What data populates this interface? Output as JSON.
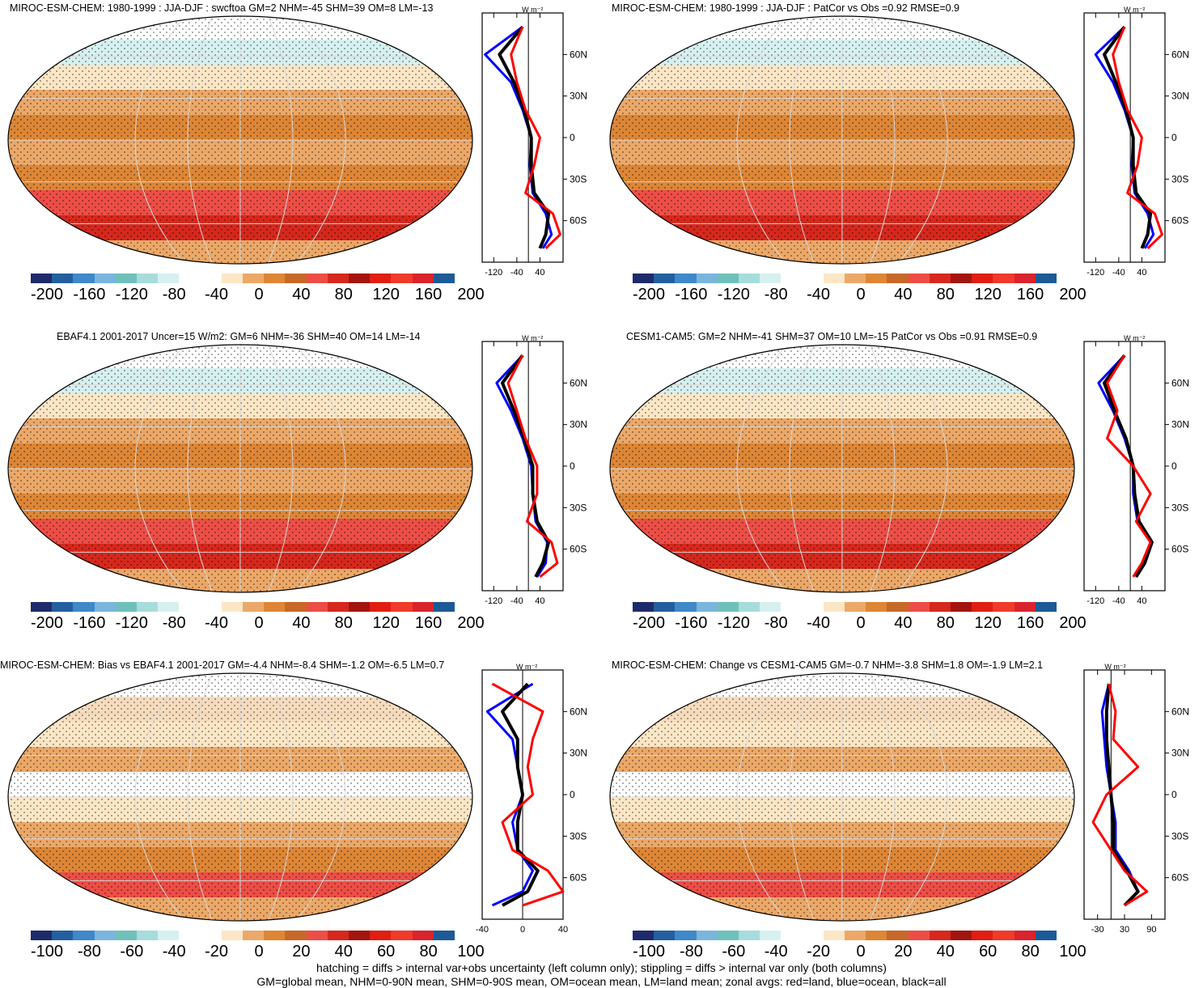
{
  "colors": {
    "palette": [
      "#1f2a6b",
      "#235f9e",
      "#3f88c9",
      "#7ab5de",
      "#6fc0bb",
      "#a7dcdc",
      "#d6f0f0",
      "#ffffff",
      "#ffffff",
      "#fbe6c5",
      "#eba868",
      "#dd8636",
      "#c86828",
      "#ec4e46",
      "#d6281d",
      "#a31510",
      "#e01e12",
      "#f03a2a",
      "#d9232d",
      "#1c5a96"
    ],
    "land": "#f0b27a",
    "zonal_land": "#ff0000",
    "zonal_ocean": "#0000ff",
    "zonal_all": "#000000"
  },
  "panels": [
    {
      "title": "MIROC-ESM-CHEM: 1980-1999 : JJA-DJF : swcftoa GM=2 NHM=-45 SHM=39 OM=8 LM=-13",
      "cbar_labels": [
        "-200",
        "-160",
        "-120",
        "-80",
        "-40",
        "0",
        "40",
        "80",
        "120",
        "160",
        "200"
      ],
      "zonal": {
        "unit": "W m⁻²",
        "x_labels": [
          "-120",
          "-40",
          "40"
        ],
        "y_labels": [
          "60N",
          "30N",
          "0",
          "30S",
          "60S"
        ]
      }
    },
    {
      "title": "MIROC-ESM-CHEM: 1980-1999 : JJA-DJF : PatCor vs Obs =0.92 RMSE=0.9",
      "cbar_labels": [
        "-200",
        "-160",
        "-120",
        "-80",
        "-40",
        "0",
        "40",
        "80",
        "120",
        "160",
        "200"
      ],
      "zonal": {
        "unit": "W m⁻²",
        "x_labels": [
          "-120",
          "-40",
          "40"
        ],
        "y_labels": [
          "60N",
          "30N",
          "0",
          "30S",
          "60S"
        ]
      }
    },
    {
      "title": "EBAF4.1 2001-2017 Uncer=15 W/m2: GM=6 NHM=-36 SHM=40 OM=14 LM=-14",
      "cbar_labels": [
        "-200",
        "-160",
        "-120",
        "-80",
        "-40",
        "0",
        "40",
        "80",
        "120",
        "160",
        "200"
      ],
      "zonal": {
        "unit": "W m⁻²",
        "x_labels": [
          "-120",
          "-40",
          "40"
        ],
        "y_labels": [
          "60N",
          "30N",
          "0",
          "30S",
          "60S"
        ]
      }
    },
    {
      "title": "CESM1-CAM5: GM=2 NHM=-41 SHM=37 OM=10 LM=-15 PatCor vs Obs =0.91 RMSE=0.9",
      "cbar_labels": [
        "-200",
        "-160",
        "-120",
        "-80",
        "-40",
        "0",
        "40",
        "80",
        "120",
        "160",
        "200"
      ],
      "zonal": {
        "unit": "W m⁻²",
        "x_labels": [
          "-120",
          "-40",
          "40"
        ],
        "y_labels": [
          "60N",
          "30N",
          "0",
          "30S",
          "60S"
        ]
      }
    },
    {
      "title": "MIROC-ESM-CHEM: Bias vs EBAF4.1 2001-2017 GM=-4.4 NHM=-8.4 SHM=-1.2 OM=-6.5 LM=0.7",
      "cbar_labels": [
        "-100",
        "-80",
        "-60",
        "-40",
        "-20",
        "0",
        "20",
        "40",
        "60",
        "80",
        "100"
      ],
      "zonal": {
        "unit": "W m⁻²",
        "x_labels": [
          "-40",
          "0",
          "40"
        ],
        "y_labels": [
          "60N",
          "30N",
          "0",
          "30S",
          "60S"
        ]
      }
    },
    {
      "title": "MIROC-ESM-CHEM: Change vs CESM1-CAM5 GM=-0.7 NHM=-3.8 SHM=1.8 OM=-1.9 LM=2.1",
      "cbar_labels": [
        "-100",
        "-80",
        "-60",
        "-40",
        "-20",
        "0",
        "20",
        "40",
        "60",
        "80",
        "100"
      ],
      "zonal": {
        "unit": "W m⁻²",
        "x_labels": [
          "-30",
          "30",
          "90"
        ],
        "y_labels": [
          "60N",
          "30N",
          "0",
          "30S",
          "60S"
        ]
      }
    }
  ],
  "footer": {
    "line1": "hatching = diffs > internal var+obs uncertainty (left column only); stippling = diffs > internal var only (both columns)",
    "line2": "GM=global mean, NHM=0-90N mean, SHM=0-90S mean, OM=ocean mean, LM=land mean; zonal avgs: red=land, blue=ocean, black=all"
  },
  "chart_data": [
    {
      "type": "line",
      "title": "MIROC-ESM-CHEM: 1980-1999 : JJA-DJF : swcftoa GM=2 NHM=-45 SHM=39 OM=8 LM=-13",
      "y": [
        80,
        60,
        40,
        20,
        0,
        -20,
        -40,
        -55,
        -70,
        -80
      ],
      "series": [
        {
          "values": [
            -20,
            -150,
            -60,
            -20,
            10,
            5,
            15,
            60,
            80,
            50
          ]
        },
        {
          "values": [
            -20,
            -100,
            -50,
            -15,
            10,
            10,
            20,
            70,
            60,
            40
          ]
        },
        {
          "values": [
            -20,
            -60,
            -40,
            -10,
            40,
            20,
            -10,
            85,
            110,
            60
          ]
        }
      ]
    },
    {
      "type": "line",
      "title": "MIROC-ESM-CHEM: 1980-1999 : JJA-DJF : PatCor vs Obs =0.92 RMSE=0.9",
      "y": [
        80,
        60,
        40,
        20,
        0,
        -20,
        -40,
        -55,
        -70,
        -80
      ],
      "series": [
        {
          "values": [
            -20,
            -120,
            -60,
            -20,
            10,
            5,
            15,
            60,
            80,
            50
          ]
        },
        {
          "values": [
            -20,
            -90,
            -50,
            -15,
            10,
            10,
            20,
            70,
            60,
            40
          ]
        },
        {
          "values": [
            -20,
            -60,
            -40,
            -10,
            40,
            25,
            -10,
            85,
            110,
            60
          ]
        }
      ]
    },
    {
      "type": "line",
      "title": "EBAF4.1 2001-2017 Uncer=15 W/m2: GM=6 NHM=-36 SHM=40 OM=14 LM=-14",
      "y": [
        80,
        60,
        40,
        20,
        0,
        -20,
        -40,
        -55,
        -70,
        -80
      ],
      "series": [
        {
          "values": [
            -20,
            -110,
            -60,
            -20,
            10,
            15,
            25,
            65,
            60,
            30
          ]
        },
        {
          "values": [
            -20,
            -90,
            -50,
            -15,
            15,
            15,
            30,
            70,
            50,
            25
          ]
        },
        {
          "values": [
            -20,
            -70,
            -40,
            -10,
            30,
            30,
            -5,
            80,
            100,
            40
          ]
        }
      ]
    },
    {
      "type": "line",
      "title": "CESM1-CAM5: GM=2 NHM=-41 SHM=37 OM=10 LM=-15 PatCor vs Obs =0.91 RMSE=0.9",
      "y": [
        80,
        60,
        40,
        20,
        0,
        -20,
        -40,
        -55,
        -70,
        -80
      ],
      "series": [
        {
          "values": [
            -20,
            -110,
            -60,
            -20,
            10,
            10,
            25,
            70,
            50,
            20
          ]
        },
        {
          "values": [
            -20,
            -90,
            -55,
            -15,
            10,
            15,
            30,
            75,
            50,
            20
          ]
        },
        {
          "values": [
            -20,
            -80,
            -45,
            -80,
            10,
            70,
            20,
            70,
            40,
            10
          ]
        }
      ]
    },
    {
      "type": "line",
      "title": "MIROC-ESM-CHEM: Bias vs EBAF4.1 2001-2017 GM=-4.4 NHM=-8.4 SHM=-1.2 OM=-6.5 LM=0.7",
      "y": [
        80,
        60,
        40,
        20,
        0,
        -20,
        -40,
        -55,
        -70,
        -80
      ],
      "series": [
        {
          "values": [
            10,
            -35,
            -10,
            -5,
            0,
            -10,
            -5,
            10,
            0,
            -30
          ]
        },
        {
          "values": [
            5,
            -20,
            -5,
            -5,
            0,
            -5,
            -5,
            15,
            5,
            -20
          ]
        },
        {
          "values": [
            -30,
            20,
            10,
            5,
            10,
            -20,
            -10,
            25,
            40,
            0
          ]
        }
      ]
    },
    {
      "type": "line",
      "title": "MIROC-ESM-CHEM: Change vs CESM1-CAM5 GM=-0.7 NHM=-3.8 SHM=1.8 OM=-1.9 LM=2.1",
      "y": [
        80,
        60,
        40,
        20,
        0,
        -20,
        -40,
        -55,
        -70,
        -80
      ],
      "series": [
        {
          "values": [
            -5,
            -20,
            -15,
            -10,
            0,
            10,
            10,
            40,
            60,
            30
          ]
        },
        {
          "values": [
            -5,
            -10,
            -10,
            -5,
            0,
            5,
            5,
            35,
            60,
            30
          ]
        },
        {
          "values": [
            -5,
            10,
            5,
            60,
            -10,
            -40,
            0,
            30,
            80,
            30
          ]
        }
      ]
    }
  ]
}
